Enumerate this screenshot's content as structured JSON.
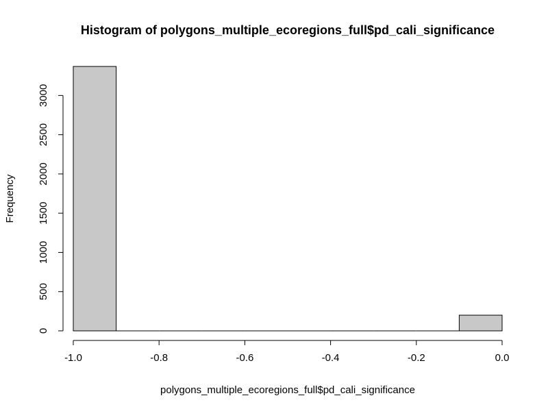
{
  "chart_data": {
    "type": "bar",
    "title": "Histogram of polygons_multiple_ecoregions_full$pd_cali_significance",
    "xlabel": "polygons_multiple_ecoregions_full$pd_cali_significance",
    "ylabel": "Frequency",
    "bins": [
      {
        "x0": -1.0,
        "x1": -0.9,
        "count": 3370
      },
      {
        "x0": -0.9,
        "x1": -0.8,
        "count": 0
      },
      {
        "x0": -0.8,
        "x1": -0.7,
        "count": 0
      },
      {
        "x0": -0.7,
        "x1": -0.6,
        "count": 0
      },
      {
        "x0": -0.6,
        "x1": -0.5,
        "count": 0
      },
      {
        "x0": -0.5,
        "x1": -0.4,
        "count": 0
      },
      {
        "x0": -0.4,
        "x1": -0.3,
        "count": 0
      },
      {
        "x0": -0.3,
        "x1": -0.2,
        "count": 0
      },
      {
        "x0": -0.2,
        "x1": -0.1,
        "count": 0
      },
      {
        "x0": -0.1,
        "x1": 0.0,
        "count": 200
      }
    ],
    "xlim": [
      -1.0,
      0.0
    ],
    "ylim": [
      0,
      3370
    ],
    "x_ticks": [
      -1.0,
      -0.8,
      -0.6,
      -0.4,
      -0.2,
      0.0
    ],
    "x_tick_labels": [
      "-1.0",
      "-0.8",
      "-0.6",
      "-0.4",
      "-0.2",
      "0.0"
    ],
    "y_ticks": [
      0,
      500,
      1000,
      1500,
      2000,
      2500,
      3000
    ],
    "y_tick_labels": [
      "0",
      "500",
      "1000",
      "1500",
      "2000",
      "2500",
      "3000"
    ],
    "grid": false,
    "bar_fill": "#c8c8c8",
    "bar_stroke": "#000000"
  }
}
